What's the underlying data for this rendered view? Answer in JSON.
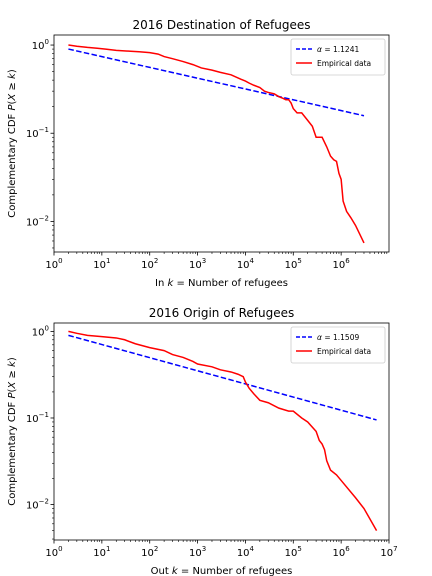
{
  "chart_data": [
    {
      "type": "line",
      "title": "2016 Destination of Refugees",
      "xlabel": "In k = Number of refugees",
      "ylabel": "Complementary CDF P(X ≥ k)",
      "xscale": "log",
      "yscale": "log",
      "xlim": [
        1,
        10000000
      ],
      "ylim": [
        0.0045,
        1.3
      ],
      "xticks": [
        {
          "v": 1,
          "base": "10",
          "exp": "0"
        },
        {
          "v": 10,
          "base": "10",
          "exp": "1"
        },
        {
          "v": 100,
          "base": "10",
          "exp": "2"
        },
        {
          "v": 1000,
          "base": "10",
          "exp": "3"
        },
        {
          "v": 10000,
          "base": "10",
          "exp": "4"
        },
        {
          "v": 100000,
          "base": "10",
          "exp": "5"
        },
        {
          "v": 1000000,
          "base": "10",
          "exp": "6"
        }
      ],
      "yticks": [
        {
          "v": 1,
          "base": "10",
          "exp": "0"
        },
        {
          "v": 0.1,
          "base": "10",
          "exp": "−1"
        },
        {
          "v": 0.01,
          "base": "10",
          "exp": "−2"
        }
      ],
      "legend": {
        "loc": "upper right"
      },
      "series": [
        {
          "name": "α = 1.1241",
          "color": "#0000ff",
          "dash": true,
          "x": [
            2,
            3000000
          ],
          "y": [
            0.9,
            0.158
          ]
        },
        {
          "name": "Empirical data",
          "color": "#ff0000",
          "dash": false,
          "x": [
            2,
            3,
            5,
            8,
            12,
            20,
            40,
            60,
            100,
            150,
            200,
            300,
            500,
            800,
            1200,
            2000,
            3000,
            5000,
            8000,
            10000,
            12000,
            15000,
            20000,
            25000,
            30000,
            40000,
            50000,
            60000,
            70000,
            80000,
            90000,
            100000,
            120000,
            150000,
            200000,
            250000,
            300000,
            400000,
            500000,
            600000,
            700000,
            800000,
            900000,
            1000000,
            1100000,
            1300000,
            1600000,
            2000000,
            3000000
          ],
          "y": [
            1.0,
            0.97,
            0.94,
            0.92,
            0.9,
            0.87,
            0.85,
            0.84,
            0.82,
            0.79,
            0.74,
            0.7,
            0.65,
            0.6,
            0.55,
            0.52,
            0.49,
            0.46,
            0.41,
            0.39,
            0.37,
            0.35,
            0.33,
            0.3,
            0.29,
            0.28,
            0.26,
            0.25,
            0.24,
            0.24,
            0.22,
            0.19,
            0.17,
            0.17,
            0.14,
            0.12,
            0.09,
            0.09,
            0.07,
            0.055,
            0.05,
            0.048,
            0.035,
            0.03,
            0.017,
            0.013,
            0.011,
            0.009,
            0.0057
          ]
        }
      ]
    },
    {
      "type": "line",
      "title": "2016 Origin of Refugees",
      "xlabel": "Out k = Number of refugees",
      "ylabel": "Complementary CDF P(X ≥ k)",
      "xscale": "log",
      "yscale": "log",
      "xlim": [
        1,
        10000000
      ],
      "ylim": [
        0.0039,
        1.25
      ],
      "xticks": [
        {
          "v": 1,
          "base": "10",
          "exp": "0"
        },
        {
          "v": 10,
          "base": "10",
          "exp": "1"
        },
        {
          "v": 100,
          "base": "10",
          "exp": "2"
        },
        {
          "v": 1000,
          "base": "10",
          "exp": "3"
        },
        {
          "v": 10000,
          "base": "10",
          "exp": "4"
        },
        {
          "v": 100000,
          "base": "10",
          "exp": "5"
        },
        {
          "v": 1000000,
          "base": "10",
          "exp": "6"
        },
        {
          "v": 10000000,
          "base": "10",
          "exp": "7"
        }
      ],
      "yticks": [
        {
          "v": 1,
          "base": "10",
          "exp": "0"
        },
        {
          "v": 0.1,
          "base": "10",
          "exp": "−1"
        },
        {
          "v": 0.01,
          "base": "10",
          "exp": "−2"
        }
      ],
      "legend": {
        "loc": "upper right"
      },
      "series": [
        {
          "name": "α = 1.1509",
          "color": "#0000ff",
          "dash": true,
          "x": [
            2,
            5500000
          ],
          "y": [
            0.9,
            0.095
          ]
        },
        {
          "name": "Empirical data",
          "color": "#ff0000",
          "dash": false,
          "x": [
            2,
            3,
            5,
            10,
            20,
            30,
            50,
            100,
            200,
            300,
            500,
            800,
            1000,
            2000,
            3000,
            5000,
            7000,
            9000,
            10000,
            12000,
            15000,
            20000,
            30000,
            50000,
            80000,
            100000,
            150000,
            200000,
            300000,
            350000,
            400000,
            450000,
            500000,
            600000,
            800000,
            1000000,
            2000000,
            3000000,
            5500000
          ],
          "y": [
            1.0,
            0.95,
            0.9,
            0.87,
            0.84,
            0.8,
            0.72,
            0.65,
            0.6,
            0.54,
            0.5,
            0.45,
            0.42,
            0.39,
            0.36,
            0.34,
            0.32,
            0.3,
            0.26,
            0.22,
            0.19,
            0.16,
            0.15,
            0.13,
            0.12,
            0.12,
            0.1,
            0.09,
            0.07,
            0.055,
            0.05,
            0.043,
            0.032,
            0.025,
            0.022,
            0.019,
            0.012,
            0.009,
            0.005
          ]
        }
      ]
    }
  ]
}
